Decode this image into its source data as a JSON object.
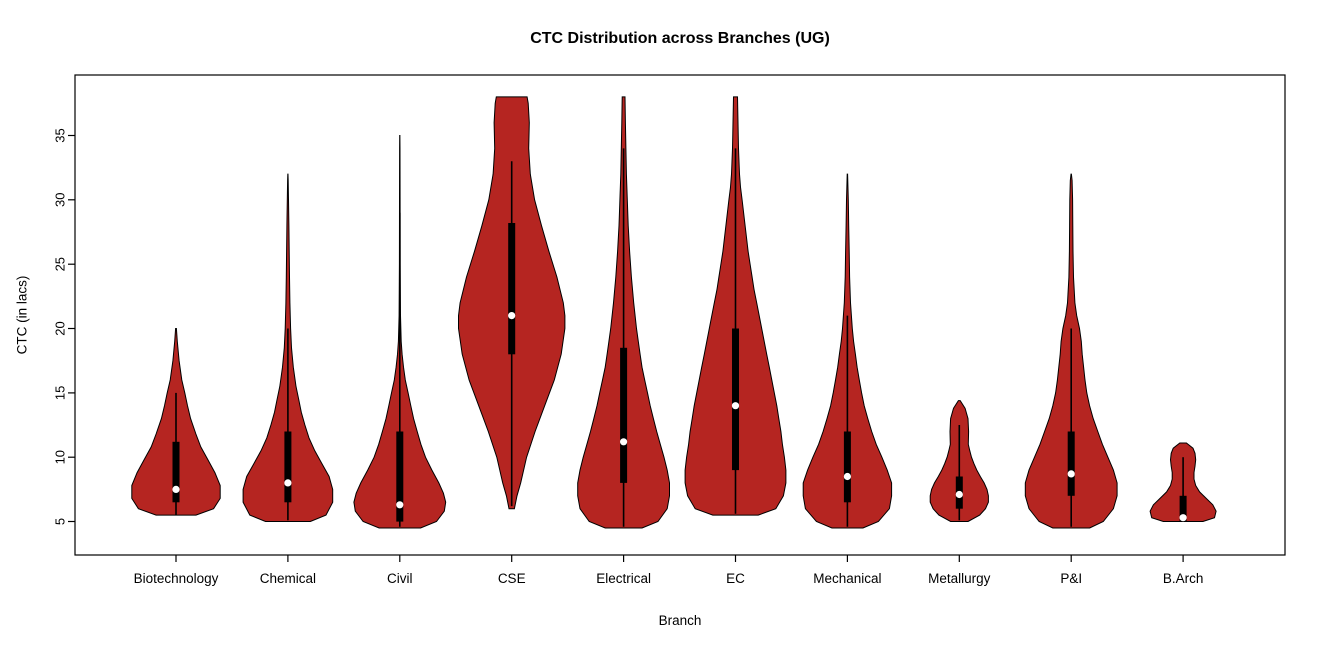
{
  "chart_data": {
    "type": "violin",
    "title": "CTC Distribution across Branches (UG)",
    "xlabel": "Branch",
    "ylabel": "CTC (in lacs)",
    "ylim": [
      2.4,
      39.7
    ],
    "yticks": [
      5,
      10,
      15,
      20,
      25,
      30,
      35
    ],
    "grid": false,
    "legend": "none",
    "colors": {
      "violin_fill": "#B52521",
      "violin_stroke": "#000000",
      "box": "#000000",
      "median_dot": "#FFFFFF",
      "axis": "#000000",
      "background": "#FFFFFF"
    },
    "categories": [
      "Biotechnology",
      "Chemical",
      "Civil",
      "CSE",
      "Electrical",
      "EC",
      "Mechanical",
      "Metallurgy",
      "P&I",
      "B.Arch"
    ],
    "series": [
      {
        "name": "Biotechnology",
        "min": 5.5,
        "max": 20,
        "q1": 6.5,
        "q3": 11.2,
        "median": 7.5,
        "whisker_low": 5.5,
        "whisker_high": 15,
        "width": 0.79,
        "profile": [
          [
            5.5,
            0.45
          ],
          [
            6,
            0.85
          ],
          [
            6.8,
            1.0
          ],
          [
            7.8,
            1.0
          ],
          [
            8.8,
            0.88
          ],
          [
            9.8,
            0.72
          ],
          [
            10.8,
            0.56
          ],
          [
            11.8,
            0.45
          ],
          [
            13,
            0.33
          ],
          [
            14,
            0.26
          ],
          [
            15,
            0.2
          ],
          [
            16,
            0.13
          ],
          [
            17.5,
            0.07
          ],
          [
            19,
            0.03
          ],
          [
            20,
            0.01
          ]
        ]
      },
      {
        "name": "Chemical",
        "min": 5,
        "max": 32,
        "q1": 6.5,
        "q3": 12,
        "median": 8,
        "whisker_low": 5.1,
        "whisker_high": 20,
        "width": 0.8,
        "profile": [
          [
            5,
            0.5
          ],
          [
            5.5,
            0.85
          ],
          [
            6.5,
            1.0
          ],
          [
            7.5,
            1.0
          ],
          [
            8.5,
            0.92
          ],
          [
            9.5,
            0.76
          ],
          [
            10.5,
            0.6
          ],
          [
            11.5,
            0.47
          ],
          [
            12.5,
            0.38
          ],
          [
            13.5,
            0.3
          ],
          [
            14.5,
            0.24
          ],
          [
            15.5,
            0.18
          ],
          [
            17,
            0.12
          ],
          [
            18.5,
            0.08
          ],
          [
            20,
            0.06
          ],
          [
            22,
            0.045
          ],
          [
            24,
            0.035
          ],
          [
            26,
            0.028
          ],
          [
            28,
            0.022
          ],
          [
            30,
            0.014
          ],
          [
            31.5,
            0.007
          ],
          [
            32,
            0.002
          ]
        ]
      },
      {
        "name": "Civil",
        "min": 4.5,
        "max": 35,
        "q1": 5,
        "q3": 12,
        "median": 6.3,
        "whisker_low": 4.6,
        "whisker_high": 29,
        "width": 0.82,
        "profile": [
          [
            4.5,
            0.45
          ],
          [
            5,
            0.8
          ],
          [
            5.8,
            0.97
          ],
          [
            6.5,
            1.0
          ],
          [
            7.2,
            0.95
          ],
          [
            8,
            0.85
          ],
          [
            9,
            0.7
          ],
          [
            10,
            0.56
          ],
          [
            11,
            0.46
          ],
          [
            12,
            0.38
          ],
          [
            13,
            0.3
          ],
          [
            14,
            0.24
          ],
          [
            15,
            0.18
          ],
          [
            16,
            0.12
          ],
          [
            17,
            0.08
          ],
          [
            18,
            0.05
          ],
          [
            19,
            0.03
          ],
          [
            21,
            0.015
          ],
          [
            25,
            0.008
          ],
          [
            30,
            0.006
          ],
          [
            34,
            0.004
          ],
          [
            35,
            0.002
          ]
        ]
      },
      {
        "name": "CSE",
        "min": 6,
        "max": 38,
        "q1": 18,
        "q3": 28.2,
        "median": 21,
        "whisker_low": 6.2,
        "whisker_high": 33,
        "width": 0.95,
        "profile": [
          [
            6,
            0.05
          ],
          [
            7,
            0.1
          ],
          [
            8,
            0.17
          ],
          [
            10,
            0.28
          ],
          [
            12,
            0.44
          ],
          [
            14,
            0.62
          ],
          [
            16,
            0.8
          ],
          [
            18,
            0.93
          ],
          [
            20,
            1.0
          ],
          [
            21,
            1.0
          ],
          [
            22,
            0.97
          ],
          [
            24,
            0.85
          ],
          [
            26,
            0.7
          ],
          [
            28,
            0.56
          ],
          [
            30,
            0.43
          ],
          [
            32,
            0.35
          ],
          [
            34,
            0.32
          ],
          [
            36,
            0.33
          ],
          [
            37.5,
            0.31
          ],
          [
            38,
            0.29
          ]
        ]
      },
      {
        "name": "Electrical",
        "min": 4.5,
        "max": 38,
        "q1": 8,
        "q3": 18.5,
        "median": 11.2,
        "whisker_low": 4.6,
        "whisker_high": 34,
        "width": 0.82,
        "profile": [
          [
            4.5,
            0.4
          ],
          [
            5,
            0.75
          ],
          [
            6,
            0.95
          ],
          [
            7,
            1.0
          ],
          [
            8,
            1.0
          ],
          [
            9,
            0.95
          ],
          [
            10,
            0.88
          ],
          [
            11,
            0.8
          ],
          [
            12,
            0.72
          ],
          [
            13,
            0.65
          ],
          [
            14,
            0.58
          ],
          [
            15,
            0.52
          ],
          [
            16,
            0.46
          ],
          [
            17,
            0.4
          ],
          [
            18,
            0.36
          ],
          [
            19,
            0.32
          ],
          [
            20,
            0.28
          ],
          [
            22,
            0.22
          ],
          [
            24,
            0.17
          ],
          [
            26,
            0.13
          ],
          [
            28,
            0.1
          ],
          [
            30,
            0.08
          ],
          [
            32,
            0.06
          ],
          [
            34,
            0.05
          ],
          [
            36,
            0.04
          ],
          [
            38,
            0.03
          ]
        ]
      },
      {
        "name": "EC",
        "min": 5.5,
        "max": 38,
        "q1": 9,
        "q3": 20,
        "median": 14,
        "whisker_low": 5.6,
        "whisker_high": 34,
        "width": 0.9,
        "profile": [
          [
            5.5,
            0.45
          ],
          [
            6,
            0.8
          ],
          [
            7,
            0.95
          ],
          [
            8,
            1.0
          ],
          [
            9,
            1.0
          ],
          [
            10,
            0.97
          ],
          [
            11,
            0.93
          ],
          [
            12,
            0.9
          ],
          [
            13,
            0.86
          ],
          [
            14,
            0.82
          ],
          [
            15,
            0.77
          ],
          [
            16,
            0.72
          ],
          [
            17,
            0.67
          ],
          [
            18,
            0.62
          ],
          [
            19,
            0.57
          ],
          [
            20,
            0.52
          ],
          [
            21,
            0.47
          ],
          [
            22,
            0.42
          ],
          [
            23,
            0.37
          ],
          [
            24,
            0.33
          ],
          [
            25,
            0.29
          ],
          [
            26,
            0.25
          ],
          [
            27,
            0.22
          ],
          [
            28,
            0.19
          ],
          [
            29,
            0.16
          ],
          [
            30,
            0.13
          ],
          [
            31,
            0.1
          ],
          [
            32,
            0.08
          ],
          [
            34,
            0.06
          ],
          [
            36,
            0.05
          ],
          [
            38,
            0.04
          ]
        ]
      },
      {
        "name": "Mechanical",
        "min": 4.5,
        "max": 32,
        "q1": 6.5,
        "q3": 12,
        "median": 8.5,
        "whisker_low": 4.6,
        "whisker_high": 21,
        "width": 0.79,
        "profile": [
          [
            4.5,
            0.35
          ],
          [
            5,
            0.7
          ],
          [
            6,
            0.95
          ],
          [
            7,
            1.0
          ],
          [
            8,
            1.0
          ],
          [
            9,
            0.9
          ],
          [
            10,
            0.78
          ],
          [
            11,
            0.65
          ],
          [
            12,
            0.55
          ],
          [
            13,
            0.46
          ],
          [
            14,
            0.38
          ],
          [
            15,
            0.32
          ],
          [
            16,
            0.27
          ],
          [
            17,
            0.22
          ],
          [
            18,
            0.18
          ],
          [
            19,
            0.14
          ],
          [
            20,
            0.11
          ],
          [
            21,
            0.09
          ],
          [
            22,
            0.07
          ],
          [
            24,
            0.05
          ],
          [
            26,
            0.04
          ],
          [
            28,
            0.03
          ],
          [
            30,
            0.02
          ],
          [
            32,
            0.005
          ]
        ]
      },
      {
        "name": "Metallurgy",
        "min": 5,
        "max": 14.4,
        "q1": 6,
        "q3": 8.5,
        "median": 7.1,
        "whisker_low": 5.1,
        "whisker_high": 12.5,
        "width": 0.52,
        "profile": [
          [
            5,
            0.3
          ],
          [
            5.5,
            0.7
          ],
          [
            6,
            0.9
          ],
          [
            6.5,
            1.0
          ],
          [
            7,
            1.0
          ],
          [
            7.5,
            0.95
          ],
          [
            8,
            0.85
          ],
          [
            8.5,
            0.72
          ],
          [
            9,
            0.6
          ],
          [
            9.5,
            0.5
          ],
          [
            10,
            0.42
          ],
          [
            10.5,
            0.36
          ],
          [
            11,
            0.31
          ],
          [
            12,
            0.32
          ],
          [
            13,
            0.3
          ],
          [
            13.8,
            0.2
          ],
          [
            14.4,
            0.03
          ]
        ]
      },
      {
        "name": "P&I",
        "min": 4.5,
        "max": 32,
        "q1": 7,
        "q3": 12,
        "median": 8.7,
        "whisker_low": 4.6,
        "whisker_high": 20,
        "width": 0.82,
        "profile": [
          [
            4.5,
            0.4
          ],
          [
            5,
            0.7
          ],
          [
            6,
            0.92
          ],
          [
            7,
            1.0
          ],
          [
            8,
            1.0
          ],
          [
            9,
            0.92
          ],
          [
            10,
            0.8
          ],
          [
            11,
            0.68
          ],
          [
            12,
            0.58
          ],
          [
            13,
            0.48
          ],
          [
            14,
            0.4
          ],
          [
            15,
            0.34
          ],
          [
            16,
            0.3
          ],
          [
            17,
            0.27
          ],
          [
            18,
            0.24
          ],
          [
            19,
            0.22
          ],
          [
            20,
            0.18
          ],
          [
            21,
            0.12
          ],
          [
            22,
            0.08
          ],
          [
            24,
            0.05
          ],
          [
            26,
            0.04
          ],
          [
            28,
            0.035
          ],
          [
            30,
            0.03
          ],
          [
            31.5,
            0.02
          ],
          [
            32,
            0.005
          ]
        ]
      },
      {
        "name": "B.Arch",
        "min": 5,
        "max": 11.1,
        "q1": 5,
        "q3": 7,
        "median": 5.3,
        "whisker_low": 5,
        "whisker_high": 10,
        "width": 0.59,
        "profile": [
          [
            5,
            0.6
          ],
          [
            5.3,
            0.95
          ],
          [
            5.8,
            1.0
          ],
          [
            6.3,
            0.9
          ],
          [
            6.8,
            0.7
          ],
          [
            7.3,
            0.5
          ],
          [
            7.8,
            0.38
          ],
          [
            8.3,
            0.33
          ],
          [
            8.8,
            0.33
          ],
          [
            9.3,
            0.36
          ],
          [
            9.8,
            0.38
          ],
          [
            10.3,
            0.36
          ],
          [
            10.7,
            0.3
          ],
          [
            11.1,
            0.1
          ]
        ]
      }
    ]
  }
}
